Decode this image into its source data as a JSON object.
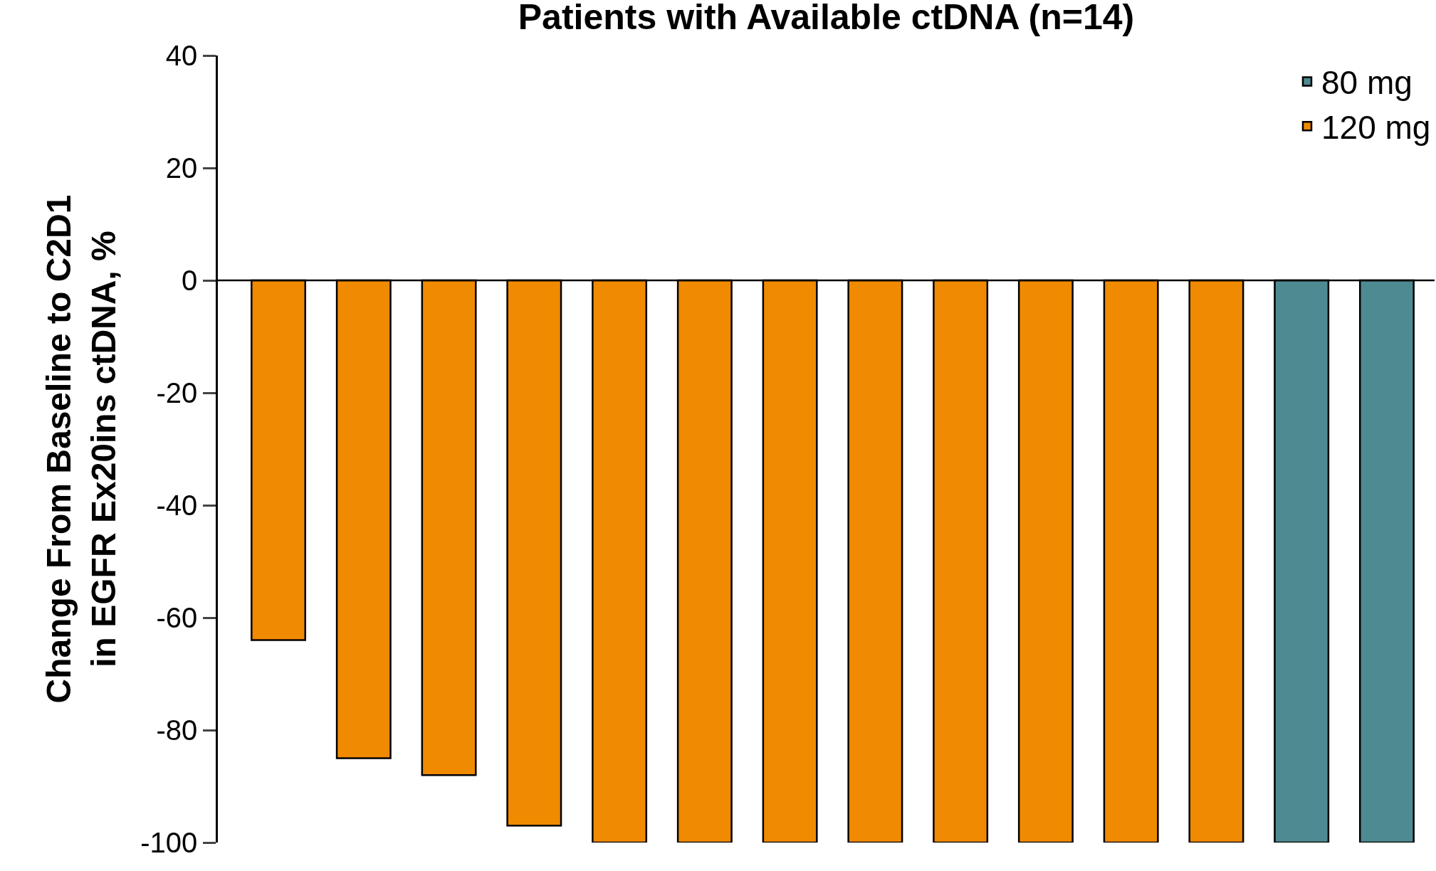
{
  "chart_data": {
    "type": "bar",
    "title": "Patients with Available ctDNA (n=14)",
    "ylabel": "Change From Baseline to C2D1\nin EGFR Ex20ins ctDNA, %",
    "categories": [
      null,
      null,
      null,
      null,
      null,
      null,
      null,
      null,
      null,
      null,
      null,
      null,
      null,
      null
    ],
    "series": [
      {
        "name": "80 mg",
        "color": "#4e8a92",
        "values": [
          null,
          null,
          null,
          null,
          null,
          null,
          null,
          null,
          null,
          null,
          null,
          null,
          -100,
          -100
        ]
      },
      {
        "name": "120 mg",
        "color": "#f08a00",
        "values": [
          -64,
          -85,
          -88,
          -97,
          -100,
          -100,
          -100,
          -100,
          -100,
          -100,
          -100,
          -100,
          null,
          null
        ]
      }
    ],
    "ylim": [
      -100,
      40
    ],
    "yticks": [
      -100,
      -80,
      -60,
      -40,
      -20,
      0,
      20,
      40
    ],
    "ref_lines": [
      {
        "axis": "y",
        "value": 0,
        "color": "#000000",
        "line_style": "solid"
      }
    ],
    "legend": "top right"
  }
}
